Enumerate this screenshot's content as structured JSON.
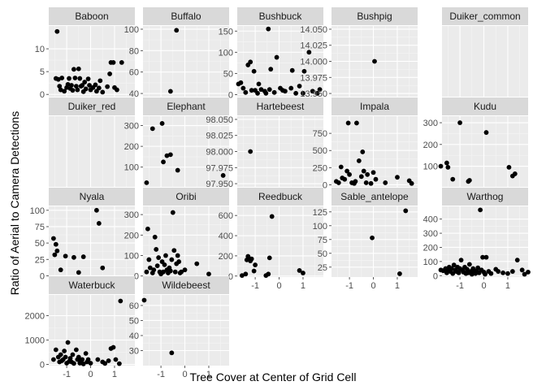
{
  "chart_data": {
    "type": "scatter",
    "xlabel": "Tree Cover at Center of Grid Cell",
    "ylabel": "Ratio of Aerial to Camera Detections",
    "x_ticks": [
      -1,
      0,
      1
    ],
    "xlim": [
      -1.75,
      1.85
    ],
    "colors": {
      "panel": "#ebebeb",
      "strip": "#d9d9d9",
      "grid_major": "#ffffff",
      "point": "#000000",
      "tick_label": "#4d4d4d"
    },
    "panels": [
      {
        "name": "Baboon",
        "ylim": [
          -0.5,
          15
        ],
        "y_ticks": [
          0,
          5,
          10
        ],
        "points": [
          [
            -1.4,
            13.8
          ],
          [
            -1.45,
            3.5
          ],
          [
            -1.35,
            3.3
          ],
          [
            -1.3,
            1.8
          ],
          [
            -1.2,
            3.6
          ],
          [
            -1.25,
            1.0
          ],
          [
            -1.1,
            0.7
          ],
          [
            -1.0,
            1.5
          ],
          [
            -0.95,
            2.2
          ],
          [
            -0.9,
            3.5
          ],
          [
            -0.85,
            1.3
          ],
          [
            -0.8,
            2.0
          ],
          [
            -0.75,
            0.9
          ],
          [
            -0.7,
            5.5
          ],
          [
            -0.65,
            3.6
          ],
          [
            -0.6,
            1.8
          ],
          [
            -0.55,
            1.0
          ],
          [
            -0.5,
            5.6
          ],
          [
            -0.45,
            3.5
          ],
          [
            -0.4,
            1.8
          ],
          [
            -0.35,
            2.0
          ],
          [
            -0.3,
            0.6
          ],
          [
            -0.25,
            2.7
          ],
          [
            -0.2,
            1.2
          ],
          [
            -0.1,
            3.4
          ],
          [
            -0.05,
            2.0
          ],
          [
            0.0,
            1.0
          ],
          [
            0.1,
            1.5
          ],
          [
            0.2,
            2.1
          ],
          [
            0.25,
            0.7
          ],
          [
            0.35,
            1.4
          ],
          [
            0.4,
            3.0
          ],
          [
            0.5,
            0.5
          ],
          [
            0.7,
            1.7
          ],
          [
            0.8,
            4.5
          ],
          [
            0.85,
            7.0
          ],
          [
            0.95,
            7.0
          ],
          [
            1.0,
            1.5
          ],
          [
            1.1,
            1.0
          ],
          [
            1.3,
            7.0
          ]
        ]
      },
      {
        "name": "Buffalo",
        "ylim": [
          37,
          103
        ],
        "y_ticks": [
          40,
          60,
          80,
          100
        ],
        "points": [
          [
            -0.6,
            42
          ],
          [
            -0.35,
            99
          ]
        ]
      },
      {
        "name": "Bushbuck",
        "ylim": [
          -5,
          162
        ],
        "y_ticks": [
          0,
          50,
          100,
          150
        ],
        "points": [
          [
            -1.7,
            25
          ],
          [
            -1.6,
            28
          ],
          [
            -1.5,
            15
          ],
          [
            -1.4,
            5
          ],
          [
            -1.3,
            70
          ],
          [
            -1.2,
            77
          ],
          [
            -1.15,
            10
          ],
          [
            -1.05,
            55
          ],
          [
            -1.0,
            10
          ],
          [
            -0.9,
            3
          ],
          [
            -0.85,
            25
          ],
          [
            -0.75,
            12
          ],
          [
            -0.6,
            8
          ],
          [
            -0.55,
            3
          ],
          [
            -0.45,
            155
          ],
          [
            -0.4,
            12
          ],
          [
            -0.35,
            60
          ],
          [
            -0.2,
            5
          ],
          [
            -0.1,
            88
          ],
          [
            0.05,
            15
          ],
          [
            0.15,
            10
          ],
          [
            0.25,
            8
          ],
          [
            0.5,
            15
          ],
          [
            0.55,
            57
          ],
          [
            0.7,
            3
          ],
          [
            0.85,
            20
          ],
          [
            1.0,
            3
          ],
          [
            1.05,
            55
          ],
          [
            1.25,
            100
          ],
          [
            1.4,
            8
          ],
          [
            1.6,
            3
          ],
          [
            1.7,
            12
          ]
        ]
      },
      {
        "name": "Bushpig",
        "ylim": [
          13.945,
          14.055
        ],
        "y_ticks": [
          13.95,
          13.975,
          14.0,
          14.025,
          14.05
        ],
        "y_tick_labels": [
          "13.950",
          "13.975",
          "14.000",
          "14.025",
          "14.050"
        ],
        "points": [
          [
            0.05,
            14.0
          ]
        ]
      },
      {
        "name": "Duiker_common",
        "ylim": null,
        "y_ticks": [],
        "points": []
      },
      {
        "name": "Duiker_red",
        "ylim": null,
        "y_ticks": [],
        "points": []
      },
      {
        "name": "Elephant",
        "ylim": [
          5,
          345
        ],
        "y_ticks": [
          100,
          200,
          300
        ],
        "points": [
          [
            -1.6,
            25
          ],
          [
            -1.35,
            285
          ],
          [
            -0.95,
            310
          ],
          [
            -0.9,
            125
          ],
          [
            -0.75,
            155
          ],
          [
            -0.6,
            160
          ],
          [
            -0.3,
            85
          ],
          [
            1.6,
            60
          ]
        ]
      },
      {
        "name": "Hartebeest",
        "ylim": [
          97.945,
          98.055
        ],
        "y_ticks": [
          97.95,
          97.975,
          98.0,
          98.025,
          98.05
        ],
        "y_tick_labels": [
          "97.950",
          "97.975",
          "98.000",
          "98.025",
          "98.050"
        ],
        "points": [
          [
            -1.2,
            98.0
          ]
        ]
      },
      {
        "name": "Impala",
        "ylim": [
          -30,
          1000
        ],
        "y_ticks": [
          0,
          250,
          500,
          750
        ],
        "points": [
          [
            -1.55,
            50
          ],
          [
            -1.45,
            30
          ],
          [
            -1.35,
            260
          ],
          [
            -1.3,
            100
          ],
          [
            -1.2,
            80
          ],
          [
            -1.1,
            200
          ],
          [
            -1.05,
            900
          ],
          [
            -1.0,
            150
          ],
          [
            -0.9,
            30
          ],
          [
            -0.8,
            20
          ],
          [
            -0.75,
            50
          ],
          [
            -0.7,
            900
          ],
          [
            -0.6,
            350
          ],
          [
            -0.5,
            120
          ],
          [
            -0.45,
            480
          ],
          [
            -0.4,
            200
          ],
          [
            -0.3,
            30
          ],
          [
            -0.25,
            150
          ],
          [
            -0.1,
            20
          ],
          [
            0.0,
            180
          ],
          [
            0.1,
            80
          ],
          [
            0.5,
            30
          ],
          [
            1.0,
            110
          ],
          [
            1.5,
            60
          ],
          [
            1.6,
            20
          ]
        ]
      },
      {
        "name": "Kudu",
        "ylim": [
          5,
          330
        ],
        "y_ticks": [
          100,
          200,
          300
        ],
        "points": [
          [
            -1.8,
            100
          ],
          [
            -1.55,
            115
          ],
          [
            -1.5,
            95
          ],
          [
            -1.3,
            40
          ],
          [
            -1.0,
            300
          ],
          [
            -0.65,
            30
          ],
          [
            -0.6,
            35
          ],
          [
            0.1,
            255
          ],
          [
            1.05,
            95
          ],
          [
            1.2,
            55
          ],
          [
            1.3,
            65
          ]
        ]
      },
      {
        "name": "Nyala",
        "ylim": [
          -2,
          106
        ],
        "y_ticks": [
          0,
          25,
          50,
          75,
          100
        ],
        "points": [
          [
            -1.55,
            57
          ],
          [
            -1.5,
            32
          ],
          [
            -1.45,
            48
          ],
          [
            -1.4,
            38
          ],
          [
            -1.25,
            9
          ],
          [
            -1.05,
            30
          ],
          [
            -0.7,
            28
          ],
          [
            -0.5,
            5
          ],
          [
            -0.3,
            29
          ],
          [
            0.25,
            100
          ],
          [
            0.35,
            80
          ],
          [
            0.5,
            12
          ]
        ]
      },
      {
        "name": "Oribi",
        "ylim": [
          -5,
          340
        ],
        "y_ticks": [
          0,
          100,
          200,
          300
        ],
        "points": [
          [
            -1.6,
            20
          ],
          [
            -1.55,
            230
          ],
          [
            -1.5,
            80
          ],
          [
            -1.45,
            40
          ],
          [
            -1.35,
            15
          ],
          [
            -1.3,
            30
          ],
          [
            -1.25,
            190
          ],
          [
            -1.2,
            130
          ],
          [
            -1.15,
            50
          ],
          [
            -1.1,
            90
          ],
          [
            -1.05,
            20
          ],
          [
            -1.0,
            10
          ],
          [
            -0.95,
            70
          ],
          [
            -0.9,
            20
          ],
          [
            -0.85,
            55
          ],
          [
            -0.8,
            100
          ],
          [
            -0.75,
            30
          ],
          [
            -0.7,
            15
          ],
          [
            -0.65,
            40
          ],
          [
            -0.6,
            25
          ],
          [
            -0.55,
            80
          ],
          [
            -0.5,
            310
          ],
          [
            -0.45,
            125
          ],
          [
            -0.4,
            20
          ],
          [
            -0.35,
            60
          ],
          [
            -0.3,
            100
          ],
          [
            -0.25,
            70
          ],
          [
            -0.2,
            15
          ],
          [
            -0.15,
            20
          ],
          [
            0.0,
            30
          ],
          [
            0.5,
            60
          ],
          [
            1.0,
            10
          ]
        ]
      },
      {
        "name": "Reedbuck",
        "ylim": [
          -10,
          690
        ],
        "y_ticks": [
          0,
          200,
          400,
          600
        ],
        "points": [
          [
            -1.55,
            5
          ],
          [
            -1.4,
            20
          ],
          [
            -1.35,
            160
          ],
          [
            -1.3,
            195
          ],
          [
            -1.25,
            175
          ],
          [
            -1.2,
            150
          ],
          [
            -1.15,
            170
          ],
          [
            -1.05,
            50
          ],
          [
            -1.0,
            110
          ],
          [
            -0.55,
            5
          ],
          [
            -0.45,
            20
          ],
          [
            -0.4,
            180
          ],
          [
            -0.3,
            590
          ],
          [
            0.85,
            55
          ],
          [
            1.0,
            30
          ]
        ]
      },
      {
        "name": "Sable_antelope",
        "ylim": [
          7,
          135
        ],
        "y_ticks": [
          25,
          50,
          75,
          100,
          125
        ],
        "points": [
          [
            -0.05,
            78
          ],
          [
            1.1,
            13
          ],
          [
            1.35,
            127
          ]
        ]
      },
      {
        "name": "Warthog",
        "ylim": [
          -10,
          490
        ],
        "y_ticks": [
          0,
          100,
          200,
          300,
          400
        ],
        "points": [
          [
            -1.8,
            40
          ],
          [
            -1.7,
            35
          ],
          [
            -1.6,
            50
          ],
          [
            -1.55,
            20
          ],
          [
            -1.5,
            45
          ],
          [
            -1.45,
            60
          ],
          [
            -1.4,
            30
          ],
          [
            -1.35,
            50
          ],
          [
            -1.3,
            15
          ],
          [
            -1.25,
            75
          ],
          [
            -1.2,
            40
          ],
          [
            -1.15,
            30
          ],
          [
            -1.1,
            60
          ],
          [
            -1.05,
            20
          ],
          [
            -1.0,
            50
          ],
          [
            -0.95,
            110
          ],
          [
            -0.9,
            40
          ],
          [
            -0.85,
            25
          ],
          [
            -0.8,
            60
          ],
          [
            -0.75,
            15
          ],
          [
            -0.7,
            45
          ],
          [
            -0.65,
            20
          ],
          [
            -0.6,
            80
          ],
          [
            -0.55,
            30
          ],
          [
            -0.5,
            10
          ],
          [
            -0.45,
            50
          ],
          [
            -0.4,
            25
          ],
          [
            -0.35,
            15
          ],
          [
            -0.3,
            35
          ],
          [
            -0.25,
            55
          ],
          [
            -0.2,
            20
          ],
          [
            -0.15,
            465
          ],
          [
            -0.1,
            40
          ],
          [
            -0.05,
            130
          ],
          [
            0.0,
            25
          ],
          [
            0.05,
            10
          ],
          [
            0.1,
            130
          ],
          [
            0.2,
            30
          ],
          [
            0.3,
            15
          ],
          [
            0.5,
            45
          ],
          [
            0.6,
            30
          ],
          [
            0.8,
            20
          ],
          [
            1.0,
            15
          ],
          [
            1.2,
            30
          ],
          [
            1.4,
            110
          ],
          [
            1.6,
            40
          ],
          [
            1.7,
            10
          ],
          [
            1.85,
            25
          ]
        ]
      },
      {
        "name": "Waterbuck",
        "ylim": [
          -50,
          2850
        ],
        "y_ticks": [
          0,
          1000,
          2000
        ],
        "points": [
          [
            -1.55,
            200
          ],
          [
            -1.45,
            600
          ],
          [
            -1.35,
            300
          ],
          [
            -1.3,
            100
          ],
          [
            -1.25,
            400
          ],
          [
            -1.2,
            150
          ],
          [
            -1.15,
            200
          ],
          [
            -1.1,
            550
          ],
          [
            -1.05,
            300
          ],
          [
            -1.0,
            50
          ],
          [
            -0.95,
            900
          ],
          [
            -0.9,
            120
          ],
          [
            -0.85,
            250
          ],
          [
            -0.8,
            100
          ],
          [
            -0.75,
            400
          ],
          [
            -0.7,
            40
          ],
          [
            -0.6,
            600
          ],
          [
            -0.55,
            200
          ],
          [
            -0.5,
            300
          ],
          [
            -0.45,
            50
          ],
          [
            -0.4,
            150
          ],
          [
            -0.35,
            200
          ],
          [
            -0.3,
            20
          ],
          [
            -0.2,
            450
          ],
          [
            -0.15,
            100
          ],
          [
            -0.1,
            200
          ],
          [
            0.0,
            50
          ],
          [
            0.3,
            200
          ],
          [
            0.5,
            100
          ],
          [
            0.6,
            40
          ],
          [
            0.75,
            150
          ],
          [
            0.85,
            650
          ],
          [
            0.95,
            700
          ],
          [
            1.05,
            200
          ],
          [
            1.2,
            30
          ],
          [
            1.25,
            2600
          ]
        ]
      },
      {
        "name": "Wildebeest",
        "ylim": [
          20,
          67
        ],
        "y_ticks": [
          30,
          40,
          50,
          60
        ],
        "points": [
          [
            -1.7,
            63.5
          ],
          [
            -0.55,
            28.5
          ]
        ]
      }
    ]
  }
}
